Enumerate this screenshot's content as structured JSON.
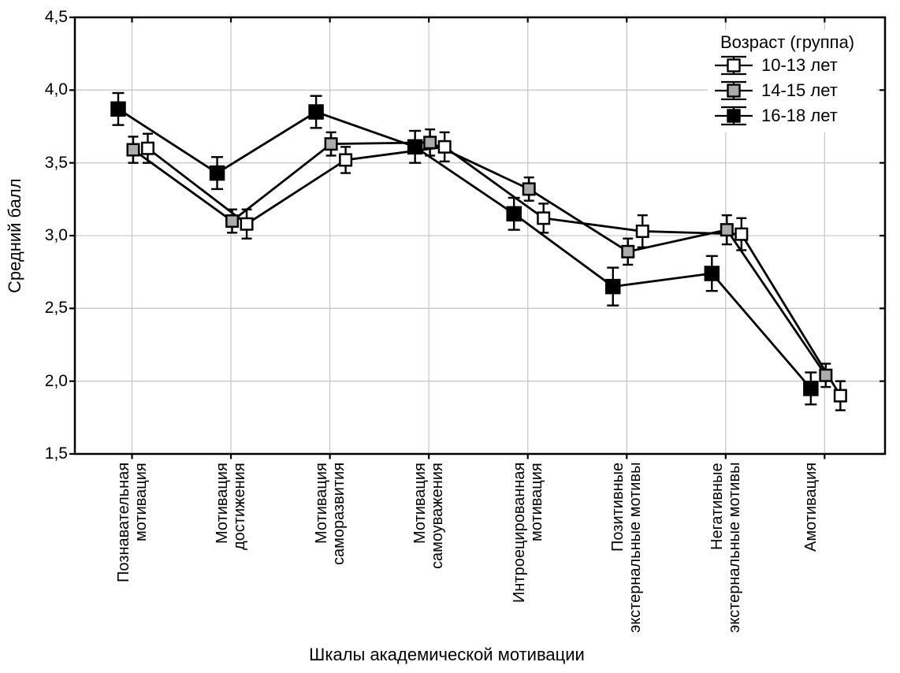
{
  "chart_data": {
    "type": "line",
    "xlabel": "Шкалы академической мотивации",
    "ylabel": "Средний балл",
    "ylim": [
      1.5,
      4.5
    ],
    "yticks": [
      4.5,
      4.0,
      3.5,
      3.0,
      2.5,
      2.0,
      1.5
    ],
    "ytick_labels": [
      "4,5",
      "4,0",
      "3,5",
      "3,0",
      "2,5",
      "2,0",
      "1,5"
    ],
    "grid": true,
    "legend": {
      "title": "Возраст (группа)",
      "position": "top-right-inside",
      "items": [
        "10-13 лет",
        "14-15 лет",
        "16-18 лет"
      ]
    },
    "categories": [
      [
        "Познавательная",
        "мотивация"
      ],
      [
        "Мотивация",
        "достижения"
      ],
      [
        "Мотивация",
        "саморазвития"
      ],
      [
        "Мотивация",
        "самоуважения"
      ],
      [
        "Интроецированная",
        "мотивация"
      ],
      [
        "Позитивные",
        "экстернальные мотивы"
      ],
      [
        "Негативные",
        "экстернальные мотивы"
      ],
      [
        "Амотивация"
      ]
    ],
    "series": [
      {
        "name": "10-13 лет",
        "marker": "square",
        "marker_fill": "#ffffff",
        "values": [
          3.6,
          3.08,
          3.52,
          3.61,
          3.12,
          3.03,
          3.01,
          1.9
        ],
        "errors": [
          0.1,
          0.1,
          0.09,
          0.1,
          0.1,
          0.11,
          0.11,
          0.1
        ]
      },
      {
        "name": "14-15 лет",
        "marker": "square",
        "marker_fill": "#ababab",
        "values": [
          3.59,
          3.1,
          3.63,
          3.64,
          3.32,
          2.89,
          3.04,
          2.04
        ],
        "errors": [
          0.09,
          0.08,
          0.08,
          0.09,
          0.08,
          0.09,
          0.1,
          0.08
        ]
      },
      {
        "name": "16-18 лет",
        "marker": "square",
        "marker_fill": "#000000",
        "values": [
          3.87,
          3.43,
          3.85,
          3.61,
          3.15,
          2.65,
          2.74,
          1.95
        ],
        "errors": [
          0.11,
          0.11,
          0.11,
          0.11,
          0.11,
          0.13,
          0.12,
          0.11
        ]
      }
    ],
    "colors": {
      "line": "#000000",
      "grid": "#c9c9c9",
      "background": "#ffffff",
      "text": "#000000"
    }
  }
}
